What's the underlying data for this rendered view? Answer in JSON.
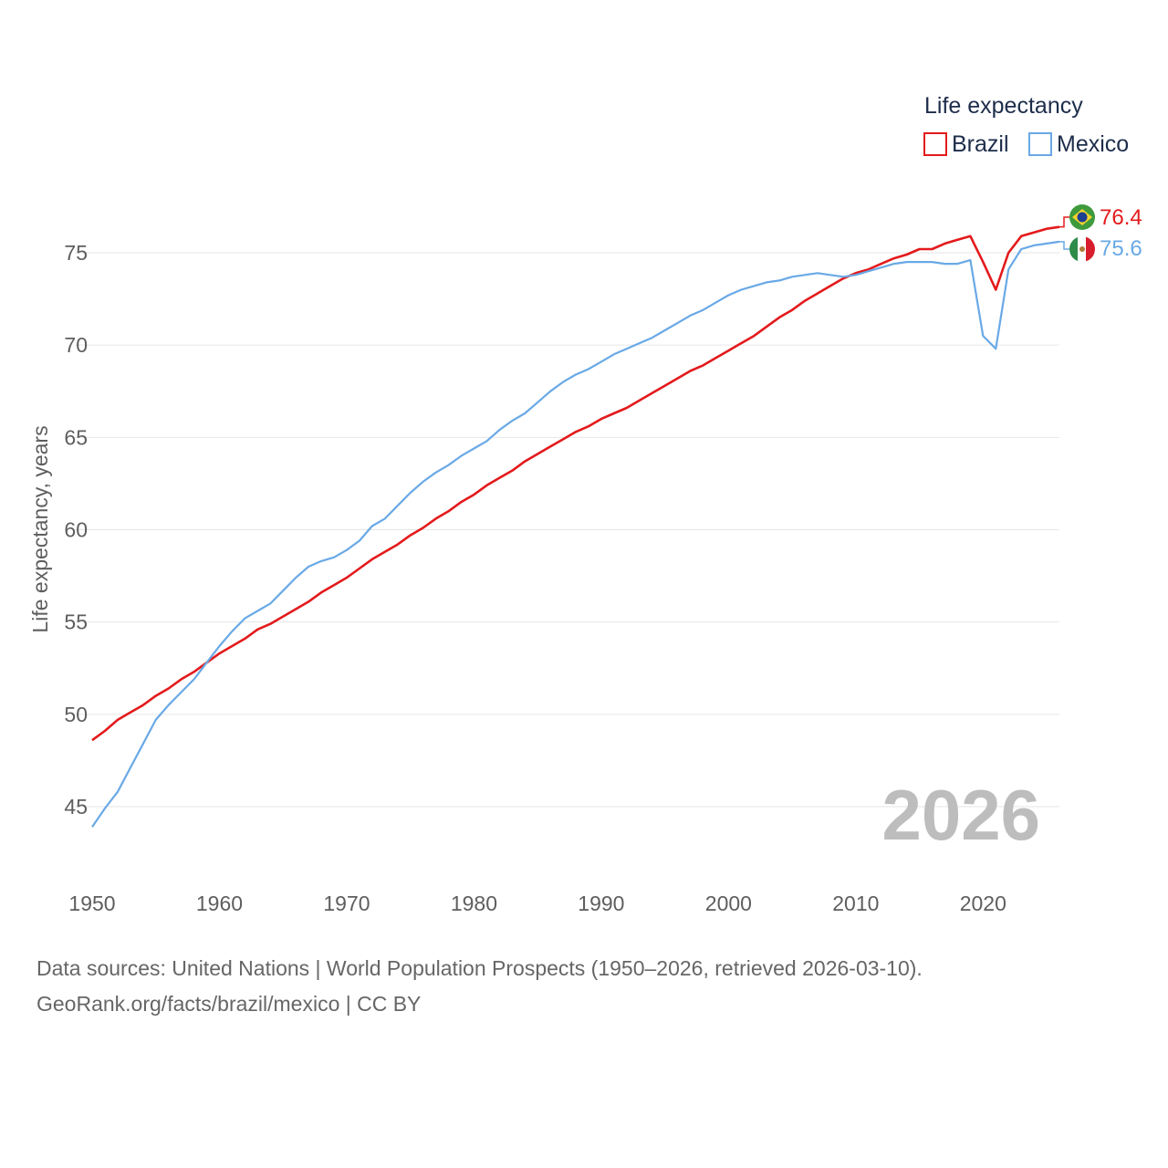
{
  "chart_data": {
    "type": "line",
    "ylabel": "Life expectancy, years",
    "xlabel": "",
    "xlim": [
      1950,
      2026
    ],
    "ylim": [
      43,
      78.5
    ],
    "yticks": [
      45,
      50,
      55,
      60,
      65,
      70,
      75
    ],
    "xticks": [
      1950,
      1960,
      1970,
      1980,
      1990,
      2000,
      2010,
      2020
    ],
    "legend_title": "Life expectancy",
    "current_year_label": "2026",
    "x": [
      1950,
      1951,
      1952,
      1953,
      1954,
      1955,
      1956,
      1957,
      1958,
      1959,
      1960,
      1961,
      1962,
      1963,
      1964,
      1965,
      1966,
      1967,
      1968,
      1969,
      1970,
      1971,
      1972,
      1973,
      1974,
      1975,
      1976,
      1977,
      1978,
      1979,
      1980,
      1981,
      1982,
      1983,
      1984,
      1985,
      1986,
      1987,
      1988,
      1989,
      1990,
      1991,
      1992,
      1993,
      1994,
      1995,
      1996,
      1997,
      1998,
      1999,
      2000,
      2001,
      2002,
      2003,
      2004,
      2005,
      2006,
      2007,
      2008,
      2009,
      2010,
      2011,
      2012,
      2013,
      2014,
      2015,
      2016,
      2017,
      2018,
      2019,
      2020,
      2021,
      2022,
      2023,
      2024,
      2025,
      2026
    ],
    "series": [
      {
        "name": "Brazil",
        "color": "#e31a1c",
        "end_label": "76.4",
        "values": [
          48.6,
          49.1,
          49.7,
          50.1,
          50.5,
          51.0,
          51.4,
          51.9,
          52.3,
          52.8,
          53.3,
          53.7,
          54.1,
          54.6,
          54.9,
          55.3,
          55.7,
          56.1,
          56.6,
          57.0,
          57.4,
          57.9,
          58.4,
          58.8,
          59.2,
          59.7,
          60.1,
          60.6,
          61.0,
          61.5,
          61.9,
          62.4,
          62.8,
          63.2,
          63.7,
          64.1,
          64.5,
          64.9,
          65.3,
          65.6,
          66.0,
          66.3,
          66.6,
          67.0,
          67.4,
          67.8,
          68.2,
          68.6,
          68.9,
          69.3,
          69.7,
          70.1,
          70.5,
          71.0,
          71.5,
          71.9,
          72.4,
          72.8,
          73.2,
          73.6,
          73.9,
          74.1,
          74.4,
          74.7,
          74.9,
          75.2,
          75.2,
          75.5,
          75.7,
          75.9,
          74.5,
          73.0,
          75.0,
          75.9,
          76.1,
          76.3,
          76.4
        ]
      },
      {
        "name": "Mexico",
        "color": "#69a9e6",
        "end_label": "75.6",
        "values": [
          43.9,
          44.9,
          45.8,
          47.1,
          48.4,
          49.7,
          50.5,
          51.2,
          51.9,
          52.8,
          53.7,
          54.5,
          55.2,
          55.6,
          56.0,
          56.7,
          57.4,
          58.0,
          58.3,
          58.5,
          58.9,
          59.4,
          60.2,
          60.6,
          61.3,
          62.0,
          62.6,
          63.1,
          63.5,
          64.0,
          64.4,
          64.8,
          65.4,
          65.9,
          66.3,
          66.9,
          67.5,
          68.0,
          68.4,
          68.7,
          69.1,
          69.5,
          69.8,
          70.1,
          70.4,
          70.8,
          71.2,
          71.6,
          71.9,
          72.3,
          72.7,
          73.0,
          73.2,
          73.4,
          73.5,
          73.7,
          73.8,
          73.9,
          73.8,
          73.7,
          73.8,
          74.0,
          74.2,
          74.4,
          74.5,
          74.5,
          74.5,
          74.4,
          74.4,
          74.6,
          70.5,
          69.8,
          74.1,
          75.2,
          75.4,
          75.5,
          75.6
        ]
      }
    ]
  },
  "footer": {
    "line1": "Data sources: United Nations | World Population Prospects (1950–2026, retrieved 2026-03-10).",
    "line2": "GeoRank.org/facts/brazil/mexico | CC BY"
  }
}
